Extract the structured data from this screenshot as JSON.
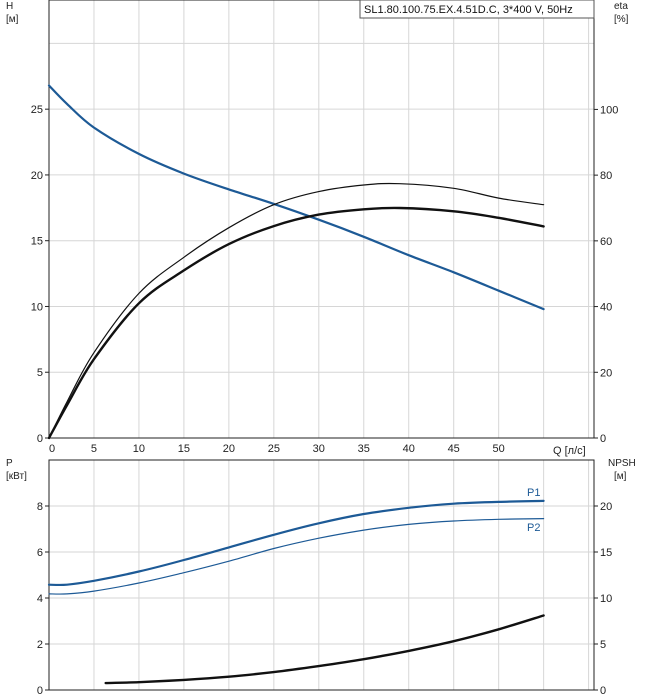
{
  "pump_label": "SL1.80.100.75.EX.4.51D.C, 3*400 V, 50Hz",
  "chart_data": [
    {
      "type": "line",
      "panel": "head-efficiency",
      "left_axis": {
        "name": "H",
        "unit": "[м]",
        "ticks": [
          0,
          5,
          10,
          15,
          20,
          25
        ],
        "ylim": [
          0,
          33.3
        ]
      },
      "right_axis": {
        "name": "eta",
        "unit": "[%]",
        "ticks": [
          0,
          20,
          40,
          60,
          80,
          100
        ],
        "ylim": [
          0,
          133.3
        ]
      },
      "x_axis": {
        "unit": "Q [л/с]",
        "ticks": [
          0,
          5,
          10,
          15,
          20,
          25,
          30,
          35,
          40,
          45,
          50
        ],
        "xlim": [
          0,
          60.6
        ]
      },
      "grid": true,
      "series": [
        {
          "axis": "left",
          "color": "#1d5a96",
          "width": 2.2,
          "x": [
            0,
            2,
            5,
            10,
            15,
            20,
            25,
            30,
            35,
            40,
            45,
            50,
            55
          ],
          "y": [
            26.8,
            25.4,
            23.6,
            21.6,
            20.1,
            18.9,
            17.8,
            16.6,
            15.3,
            13.9,
            12.6,
            11.2,
            9.8
          ]
        },
        {
          "axis": "right",
          "color": "#111111",
          "width": 1.2,
          "x": [
            0,
            2,
            5,
            10,
            15,
            20,
            25,
            30,
            35,
            39,
            45,
            50,
            55
          ],
          "y": [
            0,
            11,
            26,
            44,
            55,
            64,
            71,
            75,
            77,
            77.4,
            76,
            73,
            71
          ]
        },
        {
          "axis": "right",
          "color": "#111111",
          "width": 2.4,
          "x": [
            0,
            2,
            5,
            10,
            15,
            20,
            25,
            30,
            35,
            39,
            45,
            50,
            55
          ],
          "y": [
            0,
            10,
            24,
            41,
            51,
            59,
            64.5,
            68,
            69.6,
            70,
            69,
            67,
            64.4
          ]
        }
      ]
    },
    {
      "type": "line",
      "panel": "power-npsh",
      "left_axis": {
        "name": "P",
        "unit": "[кВт]",
        "ticks": [
          0,
          2,
          4,
          6,
          8
        ],
        "ylim": [
          0,
          10
        ]
      },
      "right_axis": {
        "name": "NPSH",
        "unit": "[м]",
        "ticks": [
          0,
          5,
          10,
          15,
          20
        ],
        "ylim": [
          0,
          25
        ]
      },
      "x_axis": {
        "xlim": [
          0,
          60.6
        ]
      },
      "grid": true,
      "series": [
        {
          "name": "P1",
          "axis": "left",
          "color": "#1d5a96",
          "width": 2.2,
          "x": [
            0,
            2,
            5,
            10,
            15,
            20,
            25,
            30,
            35,
            40,
            45,
            50,
            55
          ],
          "y": [
            4.58,
            4.58,
            4.75,
            5.15,
            5.65,
            6.2,
            6.75,
            7.25,
            7.65,
            7.92,
            8.1,
            8.18,
            8.22
          ]
        },
        {
          "name": "P2",
          "axis": "left",
          "color": "#1d5a96",
          "width": 1.2,
          "x": [
            0,
            2,
            5,
            10,
            15,
            20,
            25,
            30,
            35,
            40,
            45,
            50,
            55
          ],
          "y": [
            4.18,
            4.18,
            4.3,
            4.65,
            5.1,
            5.6,
            6.15,
            6.6,
            6.95,
            7.2,
            7.35,
            7.42,
            7.45
          ]
        },
        {
          "axis": "right",
          "color": "#111111",
          "width": 2.4,
          "x": [
            6.3,
            10,
            15,
            20,
            25,
            30,
            35,
            40,
            45,
            50,
            55
          ],
          "y": [
            0.75,
            0.85,
            1.1,
            1.45,
            1.95,
            2.6,
            3.35,
            4.25,
            5.3,
            6.6,
            8.1
          ]
        }
      ]
    }
  ]
}
